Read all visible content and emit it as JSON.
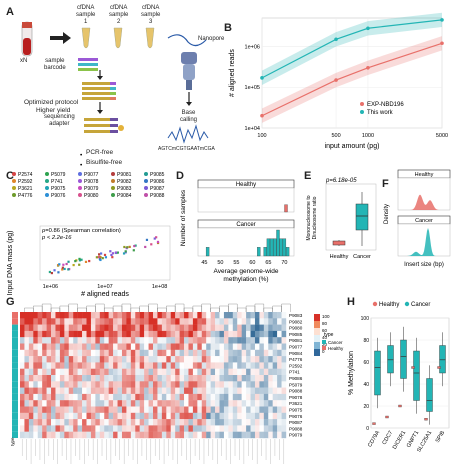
{
  "panel_labels": {
    "a": "A",
    "b": "B",
    "c": "C",
    "d": "D",
    "e": "E",
    "f": "F",
    "g": "G",
    "h": "H"
  },
  "panel_a": {
    "xn": "xN",
    "samples": [
      "cfDNA\nsample\n1",
      "cfDNA\nsample\n2",
      "cfDNA\nsample\n3"
    ],
    "sample_barcode": "sample\nbarcode",
    "optimized": "Optimized protocol",
    "higher_yield": "Higher yield",
    "sequencing_adapter": "sequencing\nadapter",
    "pcr_free": "PCR-free",
    "bisulfite_free": "Bisulfite-free",
    "nanopore": "Nanopore",
    "base_calling": "Base\ncalling",
    "sequence": "AGTCmCGTGAATmCGA"
  },
  "chart_data": [
    {
      "panel": "B",
      "type": "line",
      "xlabel": "input amount (pg)",
      "ylabel": "# aligned reads",
      "x_ticks": [
        "100",
        "500",
        "1000",
        "5000"
      ],
      "y_ticks": [
        "1e+04",
        "1e+05",
        "1e+06"
      ],
      "scale": "log-log",
      "series": [
        {
          "name": "EXP-NBD196",
          "color": "#E8706A",
          "x": [
            100,
            500,
            1000,
            5000
          ],
          "y": [
            20000,
            150000,
            300000,
            1200000
          ]
        },
        {
          "name": "This work",
          "color": "#23B5B5",
          "x": [
            100,
            500,
            1000,
            5000
          ],
          "y": [
            170000,
            1500000,
            2800000,
            4500000
          ]
        }
      ]
    },
    {
      "panel": "C",
      "type": "scatter",
      "xlabel": "# aligned reads",
      "ylabel": "Input DNA mass (pg)",
      "x_ticks": [
        "1e+06",
        "1e+07",
        "1e+08"
      ],
      "annotations": [
        "ρ=0.86 (Spearman correlation)",
        "p < 2.2e-16"
      ],
      "legend": [
        "P2574",
        "P2592",
        "P3621",
        "P4776",
        "P5079",
        "P741",
        "P9075",
        "P9076",
        "P9077",
        "P9078",
        "P9079",
        "P9080",
        "P9081",
        "P9082",
        "P9083",
        "P9084",
        "P9085",
        "P9086",
        "P9087",
        "P9088"
      ],
      "legend_colors": [
        "#d64545",
        "#e0862a",
        "#b8a71d",
        "#6e9b2b",
        "#2ea34f",
        "#26a887",
        "#1fa4b5",
        "#2c8fd6",
        "#5e6fe0",
        "#9a57d8",
        "#c94bbd",
        "#d8508d",
        "#b53d3d",
        "#c27d2d",
        "#8c9a23",
        "#3f9d4b",
        "#239c93",
        "#3477c4",
        "#7b5bd6",
        "#c04fa8"
      ]
    },
    {
      "panel": "D",
      "type": "bar",
      "facets": [
        "Healthy",
        "Cancer"
      ],
      "xlabel": "Average genome-wide\nmethylation (%)",
      "ylabel": "Number of samples",
      "x_ticks": [
        "45",
        "50",
        "55",
        "60",
        "65",
        "70"
      ],
      "y_ticks": [
        "0",
        "1",
        "2",
        "3"
      ],
      "healthy_bins": [
        {
          "x": 70.5,
          "count": 1
        }
      ],
      "cancer_bins": [
        {
          "x": 46,
          "count": 1
        },
        {
          "x": 62,
          "count": 1
        },
        {
          "x": 64,
          "count": 1
        },
        {
          "x": 65,
          "count": 2
        },
        {
          "x": 66,
          "count": 2
        },
        {
          "x": 67,
          "count": 2
        },
        {
          "x": 68,
          "count": 3
        },
        {
          "x": 69,
          "count": 2
        },
        {
          "x": 70,
          "count": 2
        },
        {
          "x": 71,
          "count": 1
        }
      ]
    },
    {
      "panel": "E",
      "type": "box",
      "pvalue": "p=6.18e-05",
      "ylabel": "Mononucleosome to\nDinucleosome ratio",
      "categories": [
        "Healthy",
        "Cancer"
      ]
    },
    {
      "panel": "F",
      "type": "area",
      "facets": [
        "Healthy",
        "Cancer"
      ],
      "xlabel": "Insert size (bp)",
      "ylabel": "Density"
    },
    {
      "panel": "G",
      "type": "heatmap",
      "legend_title": "type",
      "legend_values": [
        "100",
        "80",
        "60",
        "40",
        "20",
        "0"
      ],
      "legend_types": [
        "Cancer",
        "Healthy"
      ],
      "row_labels": [
        "P9083",
        "P9082",
        "P9080",
        "P9085",
        "P9081",
        "P9077",
        "P9084",
        "P4776",
        "P2592",
        "P741",
        "P9086",
        "P5079",
        "P9088",
        "P9078",
        "P3621",
        "P9075",
        "P9076",
        "P9087",
        "P9088",
        "P9079"
      ],
      "bottom_label": "type"
    },
    {
      "panel": "H",
      "type": "box",
      "legend": [
        "Healthy",
        "Cancer"
      ],
      "ylabel": "% Methylation",
      "categories": [
        "CD79A",
        "CDC7",
        "DICER1",
        "GNPT1",
        "SLC25A1",
        "SPIB"
      ],
      "y_ticks": [
        "0",
        "20",
        "40",
        "60",
        "80",
        "100"
      ]
    }
  ]
}
